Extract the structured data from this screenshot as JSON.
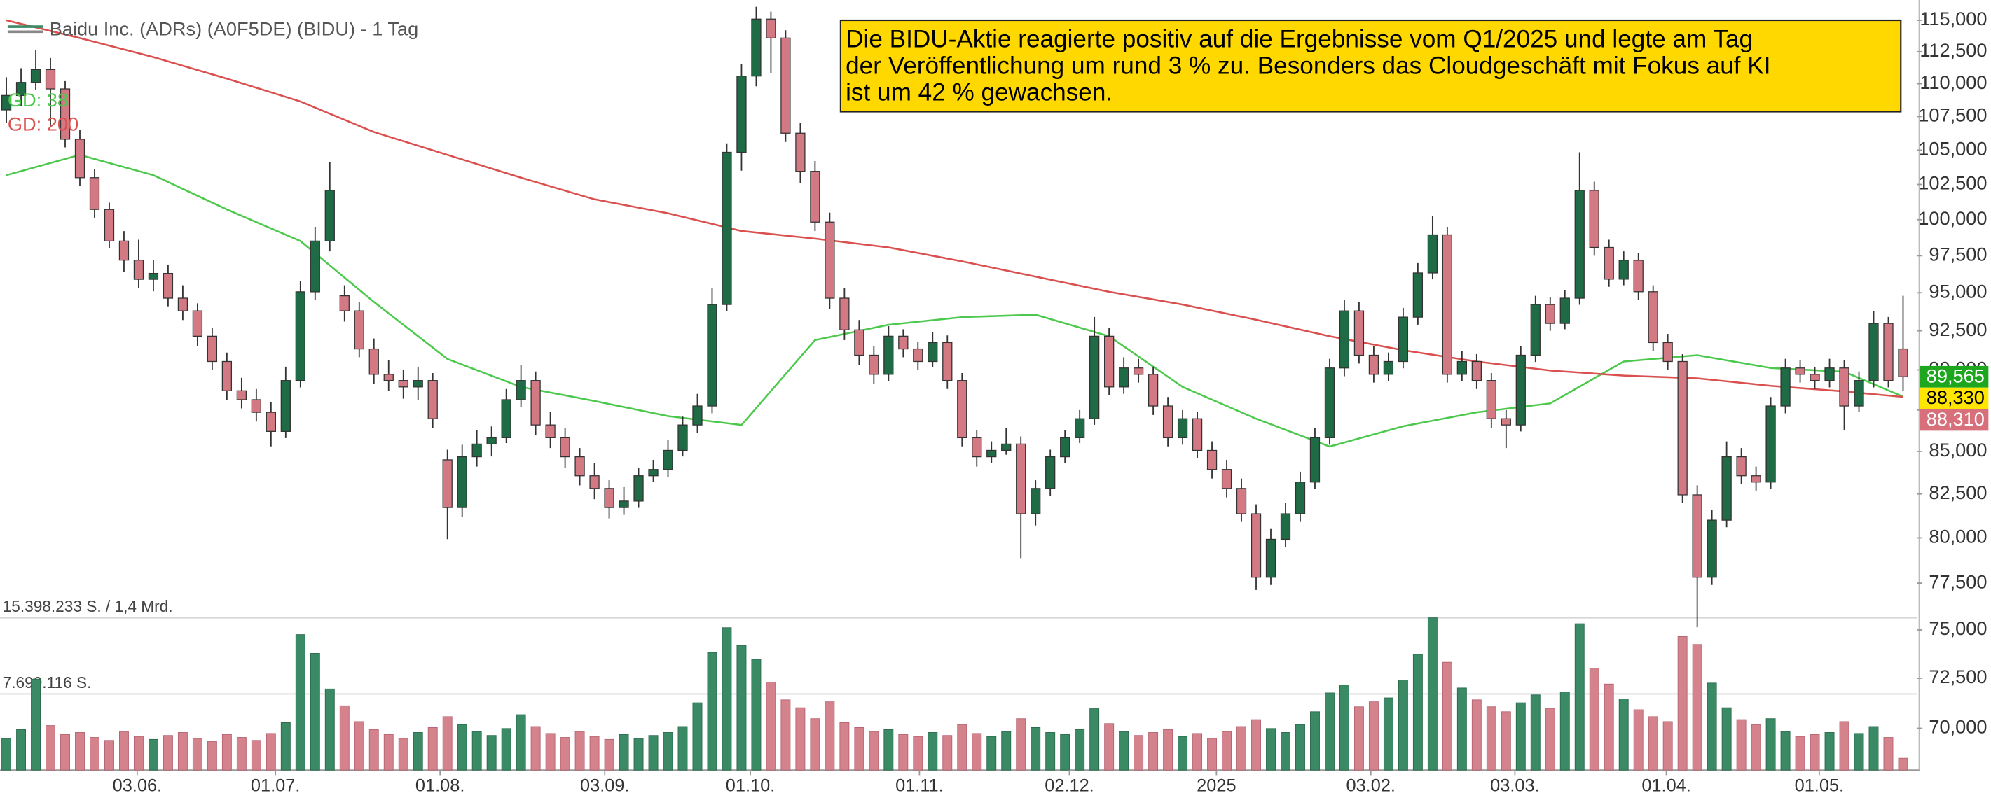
{
  "chart_data": {
    "type": "candlestick",
    "title": "Baidu Inc. (ADRs) (A0F5DE) (BIDU) - 1 Tag",
    "log_y": true,
    "grid": false,
    "up_color": "#1e6b45",
    "down_color": "#d37984",
    "xlim": [
      -0.43,
      129.97
    ],
    "xticks": [
      {
        "value": 8.9,
        "label": "03.06."
      },
      {
        "value": 18.3,
        "label": "01.07."
      },
      {
        "value": 29.5,
        "label": "01.08."
      },
      {
        "value": 40.7,
        "label": "03.09."
      },
      {
        "value": 50.6,
        "label": "01.10."
      },
      {
        "value": 62.1,
        "label": "01.11."
      },
      {
        "value": 72.3,
        "label": "02.12."
      },
      {
        "value": 82.3,
        "label": "2025"
      },
      {
        "value": 92.8,
        "label": "03.02."
      },
      {
        "value": 102.6,
        "label": "03.03."
      },
      {
        "value": 112.9,
        "label": "01.04."
      },
      {
        "value": 123.3,
        "label": "01.05."
      }
    ],
    "ylim": [
      67980,
      116650
    ],
    "yticks": [
      {
        "value": 70000,
        "label": "70,000"
      },
      {
        "value": 72500,
        "label": "72,500"
      },
      {
        "value": 75000,
        "label": "75,000"
      },
      {
        "value": 77500,
        "label": "77,500"
      },
      {
        "value": 80000,
        "label": "80,000"
      },
      {
        "value": 82500,
        "label": "82,500"
      },
      {
        "value": 85000,
        "label": "85,000"
      },
      {
        "value": 87500,
        "label": "87,500"
      },
      {
        "value": 90000,
        "label": "90,000"
      },
      {
        "value": 92500,
        "label": "92,500"
      },
      {
        "value": 95000,
        "label": "95,000"
      },
      {
        "value": 97500,
        "label": "97,500"
      },
      {
        "value": 100000,
        "label": "100,000"
      },
      {
        "value": 102500,
        "label": "102,500"
      },
      {
        "value": 105000,
        "label": "105,000"
      },
      {
        "value": 107500,
        "label": "107,500"
      },
      {
        "value": 110000,
        "label": "110,000"
      },
      {
        "value": 112500,
        "label": "112,500"
      },
      {
        "value": 115000,
        "label": "115,000"
      }
    ],
    "ohlc": [
      [
        108000,
        110500,
        107000,
        109100
      ],
      [
        109100,
        111200,
        108300,
        110100
      ],
      [
        110100,
        112600,
        109500,
        111100
      ],
      [
        111100,
        112000,
        106800,
        109600
      ],
      [
        109600,
        110200,
        105200,
        105800
      ],
      [
        105800,
        106500,
        102400,
        102990
      ],
      [
        102990,
        103600,
        100100,
        100720
      ],
      [
        100720,
        101200,
        98000,
        98510
      ],
      [
        98510,
        99200,
        96400,
        97200
      ],
      [
        97200,
        98600,
        95300,
        95900
      ],
      [
        95900,
        97200,
        95100,
        96300
      ],
      [
        96300,
        96900,
        94100,
        94640
      ],
      [
        94640,
        95500,
        93200,
        93800
      ],
      [
        93800,
        94300,
        91500,
        92150
      ],
      [
        92150,
        92700,
        90000,
        90530
      ],
      [
        90530,
        91100,
        88100,
        88690
      ],
      [
        88690,
        89500,
        87600,
        88140
      ],
      [
        88140,
        88800,
        86800,
        87360
      ],
      [
        87360,
        88000,
        85300,
        86200
      ],
      [
        86200,
        90200,
        85800,
        89330
      ],
      [
        89330,
        95800,
        88900,
        95065
      ],
      [
        95065,
        99500,
        94500,
        98510
      ],
      [
        98510,
        104100,
        97800,
        102080
      ],
      [
        94800,
        95500,
        93100,
        93800
      ],
      [
        93800,
        94400,
        90800,
        91330
      ],
      [
        91330,
        92000,
        89100,
        89720
      ],
      [
        89720,
        90600,
        88700,
        89330
      ],
      [
        89330,
        90000,
        88200,
        88930
      ],
      [
        88930,
        90200,
        88100,
        89330
      ],
      [
        89330,
        89800,
        86400,
        86970
      ],
      [
        84500,
        85100,
        79930,
        81720
      ],
      [
        81720,
        85400,
        81200,
        84680
      ],
      [
        84680,
        86300,
        84100,
        85440
      ],
      [
        85440,
        86500,
        84700,
        85820
      ],
      [
        85820,
        88800,
        85500,
        88140
      ],
      [
        88140,
        90300,
        87700,
        89330
      ],
      [
        89330,
        89900,
        86000,
        86590
      ],
      [
        86590,
        87400,
        85200,
        85820
      ],
      [
        85820,
        86400,
        84000,
        84680
      ],
      [
        84680,
        85200,
        83000,
        83560
      ],
      [
        83560,
        84300,
        82200,
        82820
      ],
      [
        82820,
        83300,
        81100,
        81720
      ],
      [
        81720,
        82900,
        81300,
        82090
      ],
      [
        82090,
        84000,
        81700,
        83560
      ],
      [
        83560,
        84500,
        83200,
        83930
      ],
      [
        83930,
        85700,
        83500,
        85060
      ],
      [
        85060,
        87100,
        84700,
        86590
      ],
      [
        86590,
        88500,
        86100,
        87750
      ],
      [
        87750,
        95300,
        87300,
        94220
      ],
      [
        94220,
        105500,
        93800,
        104840
      ],
      [
        104840,
        111500,
        103500,
        110590
      ],
      [
        110590,
        116100,
        109800,
        115100
      ],
      [
        115100,
        115700,
        110800,
        113580
      ],
      [
        113580,
        114200,
        105600,
        106250
      ],
      [
        106250,
        107000,
        102600,
        103450
      ],
      [
        103450,
        104200,
        99200,
        99830
      ],
      [
        99830,
        100500,
        93900,
        94640
      ],
      [
        94640,
        95300,
        91900,
        92560
      ],
      [
        92560,
        93200,
        90300,
        90930
      ],
      [
        90930,
        91500,
        89100,
        89720
      ],
      [
        89720,
        92800,
        89300,
        92150
      ],
      [
        92150,
        92600,
        90800,
        91330
      ],
      [
        91330,
        91800,
        90000,
        90530
      ],
      [
        90530,
        92400,
        90200,
        91740
      ],
      [
        91740,
        92200,
        88800,
        89330
      ],
      [
        89330,
        89800,
        85300,
        85820
      ],
      [
        85820,
        86300,
        84100,
        84680
      ],
      [
        84680,
        85600,
        84300,
        85060
      ],
      [
        85060,
        86400,
        84800,
        85440
      ],
      [
        85440,
        85900,
        78870,
        81360
      ],
      [
        81360,
        83300,
        80700,
        82820
      ],
      [
        82820,
        85100,
        82400,
        84680
      ],
      [
        84680,
        86300,
        84300,
        85820
      ],
      [
        85820,
        87500,
        85500,
        86970
      ],
      [
        86970,
        93400,
        86600,
        92150
      ],
      [
        92150,
        92700,
        88400,
        88930
      ],
      [
        88930,
        90800,
        88500,
        90120
      ],
      [
        90120,
        90700,
        89200,
        89720
      ],
      [
        89720,
        90200,
        87200,
        87750
      ],
      [
        87750,
        88300,
        85300,
        85820
      ],
      [
        85820,
        87500,
        85400,
        86970
      ],
      [
        86970,
        87400,
        84600,
        85060
      ],
      [
        85060,
        85600,
        83400,
        83930
      ],
      [
        83930,
        84500,
        82300,
        82820
      ],
      [
        82820,
        83400,
        80900,
        81360
      ],
      [
        81360,
        81900,
        77130,
        77820
      ],
      [
        77820,
        80500,
        77400,
        79920
      ],
      [
        79920,
        82000,
        79500,
        81360
      ],
      [
        81360,
        83800,
        80900,
        83190
      ],
      [
        83190,
        86400,
        82800,
        85820
      ],
      [
        85820,
        90700,
        85400,
        90120
      ],
      [
        90120,
        94500,
        89600,
        93800
      ],
      [
        93800,
        94400,
        90400,
        90930
      ],
      [
        90930,
        91500,
        89200,
        89720
      ],
      [
        89720,
        91100,
        89300,
        90530
      ],
      [
        90530,
        94000,
        90100,
        93390
      ],
      [
        93390,
        97000,
        92900,
        96330
      ],
      [
        96330,
        100280,
        95900,
        98940
      ],
      [
        98940,
        99500,
        89200,
        89720
      ],
      [
        89720,
        91200,
        89300,
        90530
      ],
      [
        90530,
        91000,
        88800,
        89330
      ],
      [
        89330,
        89800,
        86400,
        86970
      ],
      [
        86970,
        87500,
        85200,
        86590
      ],
      [
        86590,
        91500,
        86200,
        90930
      ],
      [
        90930,
        94800,
        90500,
        94220
      ],
      [
        94220,
        94700,
        92500,
        92980
      ],
      [
        92980,
        95200,
        92600,
        94640
      ],
      [
        94640,
        104840,
        94200,
        102080
      ],
      [
        102080,
        102700,
        97500,
        98070
      ],
      [
        98070,
        98600,
        95400,
        95910
      ],
      [
        95910,
        97800,
        95500,
        97190
      ],
      [
        97190,
        97700,
        94500,
        95070
      ],
      [
        95070,
        95500,
        91200,
        91740
      ],
      [
        91740,
        92300,
        90000,
        90530
      ],
      [
        90530,
        91000,
        82000,
        82450
      ],
      [
        82450,
        83000,
        75140,
        77820
      ],
      [
        77820,
        81600,
        77400,
        81000
      ],
      [
        81000,
        85600,
        80600,
        84680
      ],
      [
        84680,
        85200,
        83100,
        83560
      ],
      [
        83560,
        84100,
        82700,
        83190
      ],
      [
        83190,
        88300,
        82800,
        87750
      ],
      [
        87750,
        90700,
        87300,
        90120
      ],
      [
        90120,
        90600,
        89200,
        89720
      ],
      [
        89720,
        90200,
        88800,
        89330
      ],
      [
        89330,
        90700,
        88900,
        90120
      ],
      [
        90120,
        90600,
        86300,
        87750
      ],
      [
        87750,
        89900,
        87400,
        89330
      ],
      [
        89330,
        93800,
        88900,
        92980
      ],
      [
        92980,
        93400,
        88900,
        89330
      ],
      [
        91330,
        94800,
        88700,
        89565
      ]
    ],
    "volume": {
      "ylim": [
        0,
        15398233
      ],
      "yticks": [
        {
          "value": 7699116,
          "label": "7.699.116 S."
        },
        {
          "value": 15398233,
          "label": "15.398.233 S. / 1,4 Mrd."
        }
      ],
      "up_color": "#3b8a66",
      "down_color": "#d4838d",
      "values": [
        3200000,
        4100000,
        9200000,
        4500000,
        3600000,
        3800000,
        3300000,
        3000000,
        3900000,
        3400000,
        3100000,
        3500000,
        3800000,
        3200000,
        2900000,
        3600000,
        3300000,
        3000000,
        3700000,
        4800000,
        13700000,
        11800000,
        8200000,
        6500000,
        4900000,
        4100000,
        3600000,
        3200000,
        3800000,
        4300000,
        5400000,
        4600000,
        3900000,
        3500000,
        4200000,
        5600000,
        4400000,
        3700000,
        3300000,
        3900000,
        3400000,
        3100000,
        3600000,
        3200000,
        3500000,
        3800000,
        4400000,
        6800000,
        11900000,
        14400000,
        12600000,
        11200000,
        8900000,
        7100000,
        6300000,
        5200000,
        6900000,
        4800000,
        4300000,
        3900000,
        4100000,
        3600000,
        3400000,
        3800000,
        3500000,
        4600000,
        3700000,
        3400000,
        3900000,
        5200000,
        4300000,
        3800000,
        3600000,
        4100000,
        6200000,
        4700000,
        3900000,
        3500000,
        3800000,
        4100000,
        3400000,
        3700000,
        3200000,
        3900000,
        4400000,
        5100000,
        4200000,
        3800000,
        4600000,
        5900000,
        7800000,
        8600000,
        6400000,
        6900000,
        7300000,
        9100000,
        11700000,
        15400000,
        10900000,
        8300000,
        7100000,
        6400000,
        5900000,
        6800000,
        7600000,
        6200000,
        7900000,
        14800000,
        10300000,
        8700000,
        7200000,
        6100000,
        5400000,
        4900000,
        13500000,
        12700000,
        8800000,
        6300000,
        5100000,
        4600000,
        5200000,
        3900000,
        3400000,
        3600000,
        3800000,
        4900000,
        3700000,
        4400000,
        3300000,
        1200000
      ]
    },
    "moving_averages": [
      {
        "name": "GD: 38",
        "color": "#4cc94c",
        "x": [
          0,
          5,
          10,
          15,
          20,
          25,
          30,
          35,
          40,
          45,
          50,
          55,
          60,
          65,
          70,
          75,
          80,
          85,
          90,
          95,
          100,
          105,
          110,
          115,
          120,
          125,
          129
        ],
        "values": [
          103170,
          104650,
          103170,
          100720,
          98510,
          94390,
          90690,
          88930,
          88060,
          87130,
          86590,
          91900,
          92890,
          93390,
          93550,
          92150,
          88930,
          86970,
          85290,
          86510,
          87360,
          87910,
          90530,
          90930,
          90120,
          89880,
          88330
        ]
      },
      {
        "name": "GD: 200",
        "color": "#d9504f",
        "x": [
          0,
          5,
          10,
          15,
          20,
          25,
          30,
          35,
          40,
          45,
          50,
          55,
          60,
          65,
          70,
          75,
          80,
          85,
          90,
          95,
          100,
          105,
          110,
          115,
          120,
          125,
          129
        ],
        "values": [
          115000,
          113580,
          112070,
          110390,
          108640,
          106340,
          104650,
          102990,
          101440,
          100450,
          99210,
          98680,
          98070,
          97120,
          96080,
          95065,
          94220,
          93220,
          92150,
          91250,
          90530,
          89960,
          89640,
          89470,
          89000,
          88650,
          88310
        ]
      }
    ],
    "price_markers": [
      {
        "value": 89565,
        "label": "89,565",
        "color": "#1fa61f",
        "text_color": "#ffffff"
      },
      {
        "value": 88330,
        "label": "88,330",
        "color": "#ffe500",
        "text_color": "#000000"
      },
      {
        "value": 88310,
        "label": "88,310",
        "color": "#d7707a",
        "text_color": "#ffffff"
      }
    ],
    "annotation": {
      "lines": [
        "Die BIDU-Aktie reagierte positiv auf die Ergebnisse vom Q1/2025 und legte am Tag",
        "der Veröffentlichung um rund 3 % zu. Besonders das Cloudgeschäft mit Fokus auf KI",
        "ist um 42 % gewachsen."
      ]
    }
  }
}
